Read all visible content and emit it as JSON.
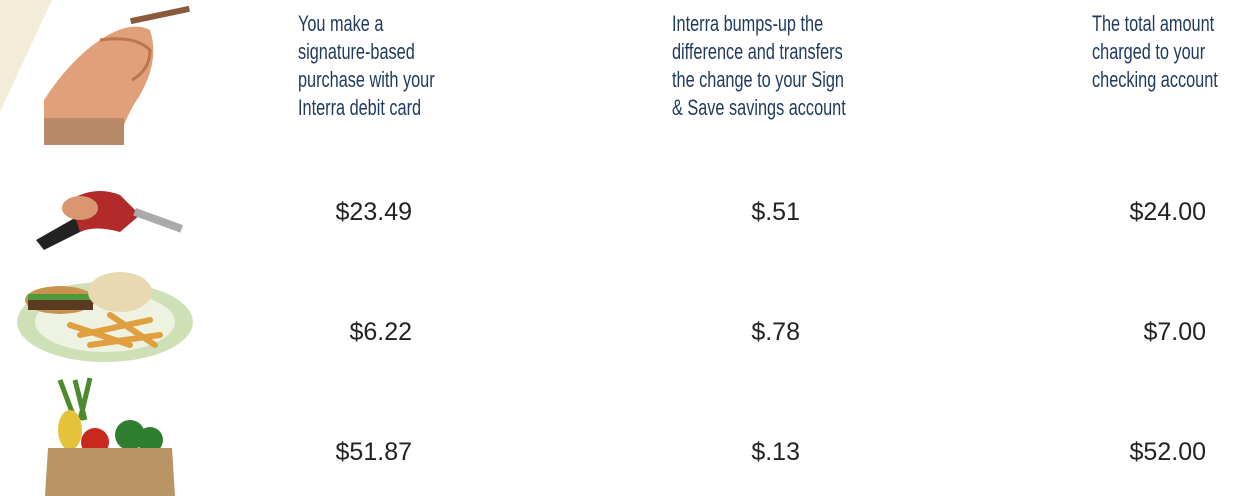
{
  "headers": [
    {
      "lines": [
        "You make a",
        "signature-based",
        "purchase with your",
        "Interra debit card"
      ]
    },
    {
      "lines": [
        "Interra bumps-up the",
        "difference and transfers",
        "the change to your Sign",
        "& Save savings account"
      ]
    },
    {
      "lines": [
        "The total amount",
        "charged to your",
        "checking account"
      ]
    }
  ],
  "rows": [
    {
      "purchase": "$23.49",
      "change": "$.51",
      "total": "$24.00"
    },
    {
      "purchase": "$6.22",
      "change": "$.78",
      "total": "$7.00"
    },
    {
      "purchase": "$51.87",
      "change": "$.13",
      "total": "$52.00"
    }
  ]
}
